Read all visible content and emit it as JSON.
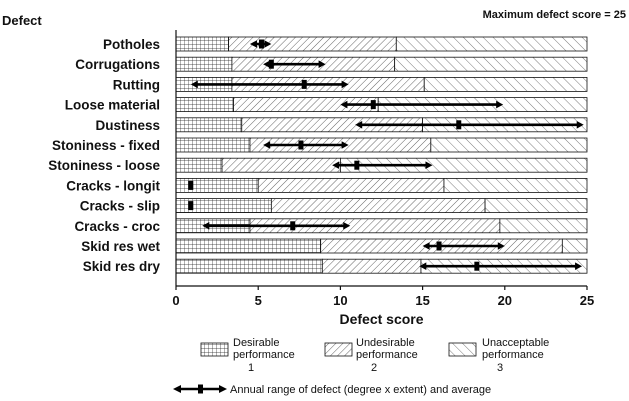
{
  "chart_data": {
    "type": "bar",
    "orientation": "horizontal",
    "stacked": true,
    "corner_title": "Defect",
    "note": "Maximum defect score = 25",
    "xlabel": "Defect score",
    "xlim": [
      0,
      25
    ],
    "xticks": [
      "0",
      "5",
      "10",
      "15",
      "20",
      "25"
    ],
    "categories": [
      "Potholes",
      "Corrugations",
      "Rutting",
      "Loose material",
      "Dustiness",
      "Stoniness - fixed",
      "Stoniness - loose",
      "Cracks - longit",
      "Cracks - slip",
      "Cracks - croc",
      "Skid res wet",
      "Skid res dry"
    ],
    "series": [
      {
        "name": "Desirable performance",
        "level": "1",
        "pattern": "grid",
        "values": [
          3.2,
          3.4,
          3.4,
          3.5,
          4.0,
          4.5,
          2.8,
          5.0,
          5.8,
          4.5,
          8.8,
          8.9
        ]
      },
      {
        "name": "Undesirable performance",
        "level": "2",
        "pattern": "forward-hatch",
        "values": [
          10.2,
          9.9,
          11.7,
          8.8,
          11.0,
          11.0,
          7.2,
          11.3,
          13.0,
          15.2,
          14.7,
          6.0
        ]
      },
      {
        "name": "Unacceptable performance",
        "level": "3",
        "pattern": "back-hatch",
        "values": [
          11.6,
          11.7,
          9.9,
          12.7,
          10.0,
          9.5,
          15.0,
          8.7,
          6.2,
          5.3,
          1.5,
          10.1
        ]
      }
    ],
    "annual_range": {
      "min": [
        4.5,
        5.3,
        0.9,
        10.0,
        10.9,
        5.3,
        9.5,
        0.6,
        0.6,
        1.6,
        15.0,
        14.8
      ],
      "avg": [
        5.2,
        5.8,
        7.8,
        12.0,
        17.2,
        7.6,
        11.0,
        0.9,
        0.9,
        7.1,
        16.0,
        18.3
      ],
      "max": [
        5.8,
        9.1,
        10.5,
        19.9,
        24.8,
        10.5,
        15.6,
        0.9,
        0.9,
        10.6,
        20.0,
        24.7
      ]
    },
    "legend_annotation": "Annual range of defect (degree x extent) and average",
    "grid": false,
    "legend_position": "bottom"
  }
}
